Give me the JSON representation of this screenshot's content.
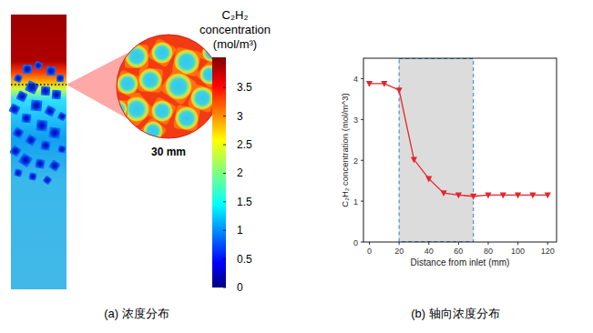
{
  "chart_data": [
    {
      "type": "heatmap",
      "title": "(a) 浓度分布",
      "annotation": "30 mm",
      "colorbar": {
        "title": [
          "C₂H₂",
          "concentration",
          "(mol/m³)"
        ],
        "range": [
          0,
          4.03
        ],
        "ticks": [
          0,
          0.5,
          1,
          1.5,
          2,
          2.5,
          3,
          3.5
        ]
      }
    },
    {
      "type": "line",
      "title": "(b) 轴向浓度分布",
      "x_label": "Distance from inlet (mm)",
      "y_label": "C₂H₂ concentration (mol/m^3)",
      "x": [
        0,
        10,
        20,
        30,
        40,
        50,
        60,
        70,
        80,
        90,
        100,
        110,
        120
      ],
      "values": [
        3.88,
        3.88,
        3.72,
        2.02,
        1.55,
        1.2,
        1.15,
        1.12,
        1.15,
        1.15,
        1.15,
        1.15,
        1.15
      ],
      "color": "#e3262b",
      "marker": "triangle-down",
      "line_style": "solid",
      "xlim": [
        -4,
        126
      ],
      "xticks": [
        0,
        20,
        40,
        60,
        80,
        100,
        120
      ],
      "ylim": [
        0,
        4.5
      ],
      "yticks": [
        0,
        1,
        2,
        3,
        4
      ],
      "highlight": {
        "x": [
          20,
          70
        ]
      }
    }
  ]
}
